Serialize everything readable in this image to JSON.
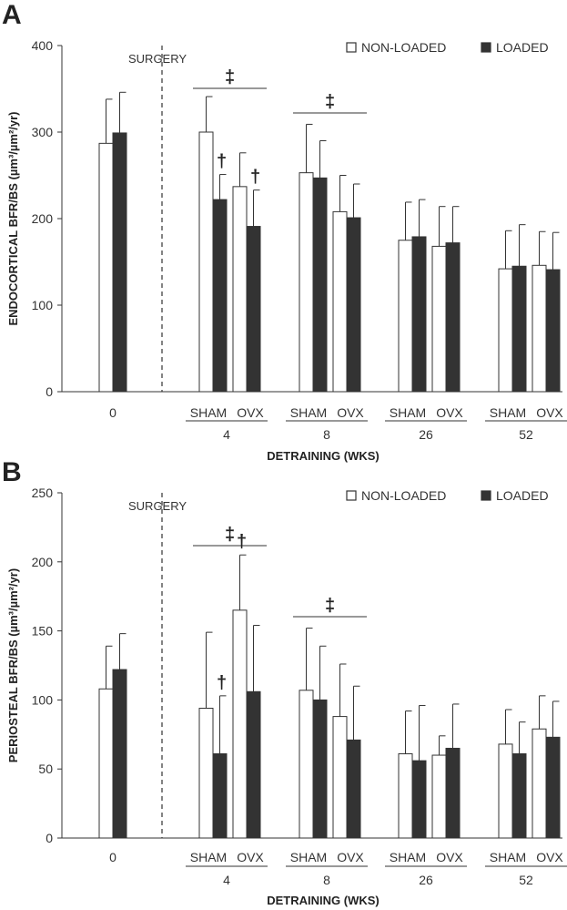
{
  "colors": {
    "non_loaded": "#ffffff",
    "loaded": "#333333",
    "axis": "#333333"
  },
  "chart_data": [
    {
      "type": "bar",
      "panel": "A",
      "ylabel": "ENDOCORTICAL BFR/BS (µm³/µm²/yr)",
      "xlabel": "DETRAINING (WKS)",
      "ylim": [
        0,
        400
      ],
      "yticks": [
        "0",
        "100",
        "200",
        "300",
        "400"
      ],
      "surgery_label": "SURGERY",
      "legend": [
        "NON-LOADED",
        "LOADED"
      ],
      "legend_position": "top-right",
      "subgroup_labels": [
        "SHAM",
        "OVX"
      ],
      "groups": [
        {
          "label": "0",
          "bars": [
            {
              "series": "NON-LOADED",
              "value": 287,
              "err": 51
            },
            {
              "series": "LOADED",
              "value": 299,
              "err": 47
            }
          ]
        },
        {
          "label": "4",
          "subgroups": [
            "SHAM",
            "OVX"
          ],
          "bars": [
            {
              "subgroup": "SHAM",
              "series": "NON-LOADED",
              "value": 300,
              "err": 41
            },
            {
              "subgroup": "SHAM",
              "series": "LOADED",
              "value": 222,
              "err": 29
            },
            {
              "subgroup": "OVX",
              "series": "NON-LOADED",
              "value": 237,
              "err": 39
            },
            {
              "subgroup": "OVX",
              "series": "LOADED",
              "value": 191,
              "err": 42
            }
          ]
        },
        {
          "label": "8",
          "subgroups": [
            "SHAM",
            "OVX"
          ],
          "bars": [
            {
              "subgroup": "SHAM",
              "series": "NON-LOADED",
              "value": 253,
              "err": 56
            },
            {
              "subgroup": "SHAM",
              "series": "LOADED",
              "value": 247,
              "err": 43
            },
            {
              "subgroup": "OVX",
              "series": "NON-LOADED",
              "value": 208,
              "err": 42
            },
            {
              "subgroup": "OVX",
              "series": "LOADED",
              "value": 201,
              "err": 39
            }
          ]
        },
        {
          "label": "26",
          "subgroups": [
            "SHAM",
            "OVX"
          ],
          "bars": [
            {
              "subgroup": "SHAM",
              "series": "NON-LOADED",
              "value": 175,
              "err": 44
            },
            {
              "subgroup": "SHAM",
              "series": "LOADED",
              "value": 179,
              "err": 43
            },
            {
              "subgroup": "OVX",
              "series": "NON-LOADED",
              "value": 168,
              "err": 46
            },
            {
              "subgroup": "OVX",
              "series": "LOADED",
              "value": 172,
              "err": 42
            }
          ]
        },
        {
          "label": "52",
          "subgroups": [
            "SHAM",
            "OVX"
          ],
          "bars": [
            {
              "subgroup": "SHAM",
              "series": "NON-LOADED",
              "value": 142,
              "err": 44
            },
            {
              "subgroup": "SHAM",
              "series": "LOADED",
              "value": 145,
              "err": 48
            },
            {
              "subgroup": "OVX",
              "series": "NON-LOADED",
              "value": 146,
              "err": 39
            },
            {
              "subgroup": "OVX",
              "series": "LOADED",
              "value": 141,
              "err": 43
            }
          ]
        }
      ],
      "significance": [
        {
          "symbol": "‡",
          "group": "4"
        },
        {
          "symbol": "‡",
          "group": "8"
        },
        {
          "symbol": "†",
          "group": "4",
          "subgroup": "SHAM",
          "series": "LOADED"
        },
        {
          "symbol": "†",
          "group": "4",
          "subgroup": "OVX",
          "series": "LOADED"
        }
      ]
    },
    {
      "type": "bar",
      "panel": "B",
      "ylabel": "PERIOSTEAL BFR/BS (µm³/µm²/yr)",
      "xlabel": "DETRAINING (WKS)",
      "ylim": [
        0,
        250
      ],
      "yticks": [
        "0",
        "50",
        "100",
        "150",
        "200",
        "250"
      ],
      "surgery_label": "SURGERY",
      "legend": [
        "NON-LOADED",
        "LOADED"
      ],
      "legend_position": "top-right",
      "subgroup_labels": [
        "SHAM",
        "OVX"
      ],
      "groups": [
        {
          "label": "0",
          "bars": [
            {
              "series": "NON-LOADED",
              "value": 108,
              "err": 31
            },
            {
              "series": "LOADED",
              "value": 122,
              "err": 26
            }
          ]
        },
        {
          "label": "4",
          "subgroups": [
            "SHAM",
            "OVX"
          ],
          "bars": [
            {
              "subgroup": "SHAM",
              "series": "NON-LOADED",
              "value": 94,
              "err": 55
            },
            {
              "subgroup": "SHAM",
              "series": "LOADED",
              "value": 61,
              "err": 42
            },
            {
              "subgroup": "OVX",
              "series": "NON-LOADED",
              "value": 165,
              "err": 40
            },
            {
              "subgroup": "OVX",
              "series": "LOADED",
              "value": 106,
              "err": 48
            }
          ]
        },
        {
          "label": "8",
          "subgroups": [
            "SHAM",
            "OVX"
          ],
          "bars": [
            {
              "subgroup": "SHAM",
              "series": "NON-LOADED",
              "value": 107,
              "err": 45
            },
            {
              "subgroup": "SHAM",
              "series": "LOADED",
              "value": 100,
              "err": 39
            },
            {
              "subgroup": "OVX",
              "series": "NON-LOADED",
              "value": 88,
              "err": 38
            },
            {
              "subgroup": "OVX",
              "series": "LOADED",
              "value": 71,
              "err": 39
            }
          ]
        },
        {
          "label": "26",
          "subgroups": [
            "SHAM",
            "OVX"
          ],
          "bars": [
            {
              "subgroup": "SHAM",
              "series": "NON-LOADED",
              "value": 61,
              "err": 31
            },
            {
              "subgroup": "SHAM",
              "series": "LOADED",
              "value": 56,
              "err": 40
            },
            {
              "subgroup": "OVX",
              "series": "NON-LOADED",
              "value": 60,
              "err": 14
            },
            {
              "subgroup": "OVX",
              "series": "LOADED",
              "value": 65,
              "err": 32
            }
          ]
        },
        {
          "label": "52",
          "subgroups": [
            "SHAM",
            "OVX"
          ],
          "bars": [
            {
              "subgroup": "SHAM",
              "series": "NON-LOADED",
              "value": 68,
              "err": 25
            },
            {
              "subgroup": "SHAM",
              "series": "LOADED",
              "value": 61,
              "err": 23
            },
            {
              "subgroup": "OVX",
              "series": "NON-LOADED",
              "value": 79,
              "err": 24
            },
            {
              "subgroup": "OVX",
              "series": "LOADED",
              "value": 73,
              "err": 26
            }
          ]
        }
      ],
      "significance": [
        {
          "symbol": "‡",
          "group": "4"
        },
        {
          "symbol": "‡",
          "group": "8"
        },
        {
          "symbol": "†",
          "group": "4",
          "subgroup": "SHAM",
          "series": "LOADED"
        },
        {
          "symbol": "†",
          "group": "4",
          "subgroup": "OVX",
          "series": "NON-LOADED"
        }
      ]
    }
  ]
}
